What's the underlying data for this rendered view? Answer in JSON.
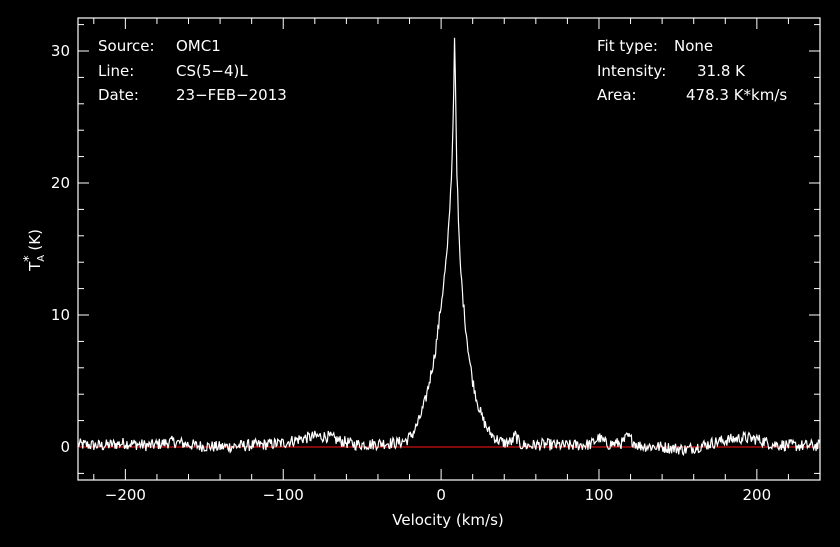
{
  "header": {
    "source_label": "Source:",
    "source_value": "OMC1",
    "line_label": "Line:",
    "line_value": "CS(5−4)L",
    "date_label": "Date:",
    "date_value": "23−FEB−2013",
    "fit_label": "Fit type:",
    "fit_value": "None",
    "intensity_label": "Intensity:",
    "intensity_value": "31.8 K",
    "area_label": "Area:",
    "area_value": "478.3 K*km/s"
  },
  "colors": {
    "background": "#000000",
    "axes": "#ffffff",
    "spectrum": "#ffffff",
    "baseline": "#d01010"
  },
  "chart_data": {
    "type": "line",
    "title": "",
    "xlabel": "Velocity (km/s)",
    "ylabel_main": "T",
    "ylabel_super": "*",
    "ylabel_sub": "A",
    "ylabel_unit": " (K)",
    "xlim": [
      -230,
      240
    ],
    "ylim": [
      -2.5,
      32.5
    ],
    "x_ticks": [
      -200,
      -100,
      0,
      100,
      200
    ],
    "x_tick_labels": [
      "−200",
      "−100",
      "0",
      "100",
      "200"
    ],
    "y_ticks": [
      0,
      10,
      20,
      30
    ],
    "y_tick_labels": [
      "0",
      "10",
      "20",
      "30"
    ],
    "grid": false,
    "baseline_value": 0,
    "series": [
      {
        "x": [
          -230,
          -215,
          -200,
          -185,
          -170,
          -155,
          -140,
          -125,
          -110,
          -100,
          -90,
          -80,
          -72,
          -65,
          -55,
          -45,
          -35,
          -28,
          -22,
          -18,
          -14,
          -10,
          -7,
          -4,
          -2,
          0,
          2,
          4,
          5,
          6,
          7,
          8,
          8.6,
          9.2,
          10,
          11,
          12,
          14,
          16,
          18,
          20,
          23,
          26,
          30,
          35,
          40,
          45,
          47,
          50,
          55,
          65,
          80,
          95,
          100,
          105,
          115,
          118,
          125,
          140,
          155,
          165,
          175,
          185,
          192,
          200,
          210,
          225,
          240
        ],
        "y": [
          0.2,
          0.1,
          0.3,
          0.1,
          0.4,
          0.1,
          0.0,
          0.1,
          0.2,
          0.3,
          0.6,
          0.8,
          0.8,
          0.5,
          0.2,
          0.2,
          0.3,
          0.3,
          0.5,
          1.0,
          2.0,
          3.5,
          5.2,
          7.0,
          8.8,
          10.8,
          12.8,
          15.0,
          17.0,
          19.2,
          22.0,
          27.0,
          31.8,
          26.5,
          21.0,
          17.0,
          14.0,
          11.0,
          8.6,
          6.6,
          5.0,
          3.4,
          2.2,
          1.2,
          0.6,
          0.3,
          0.4,
          0.9,
          0.2,
          0.1,
          0.2,
          0.1,
          0.2,
          0.7,
          0.2,
          0.3,
          0.8,
          0.1,
          0.0,
          -0.2,
          0.1,
          0.4,
          0.6,
          0.7,
          0.6,
          0.2,
          0.1,
          0.1
        ]
      }
    ]
  }
}
